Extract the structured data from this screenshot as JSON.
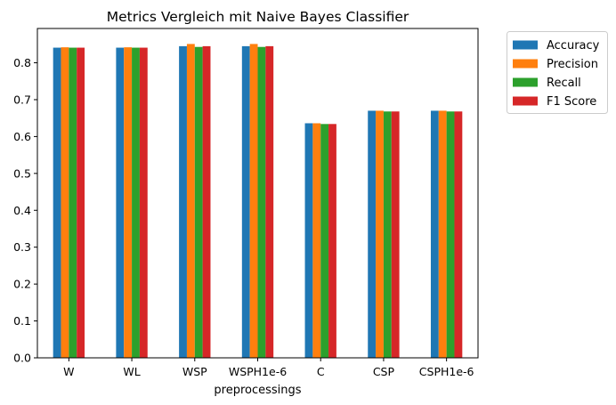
{
  "chart_data": {
    "type": "bar",
    "title": "Metrics Vergleich mit Naive Bayes Classifier",
    "xlabel": "preprocessings",
    "ylabel": "",
    "categories": [
      "W",
      "WL",
      "WSP",
      "WSPH1e-6",
      "C",
      "CSP",
      "CSPH1e-6"
    ],
    "series": [
      {
        "name": "Accuracy",
        "color": "#1f77b4",
        "values": [
          0.841,
          0.841,
          0.845,
          0.845,
          0.636,
          0.67,
          0.67
        ]
      },
      {
        "name": "Precision",
        "color": "#ff7f0e",
        "values": [
          0.842,
          0.842,
          0.851,
          0.851,
          0.636,
          0.67,
          0.67
        ]
      },
      {
        "name": "Recall",
        "color": "#2ca02c",
        "values": [
          0.841,
          0.841,
          0.843,
          0.843,
          0.634,
          0.668,
          0.668
        ]
      },
      {
        "name": "F1 Score",
        "color": "#d62728",
        "values": [
          0.841,
          0.841,
          0.845,
          0.845,
          0.634,
          0.668,
          0.668
        ]
      }
    ],
    "yticks": [
      "0.0",
      "0.1",
      "0.2",
      "0.3",
      "0.4",
      "0.5",
      "0.6",
      "0.7",
      "0.8"
    ],
    "ylim": [
      0,
      0.893
    ],
    "grid": false,
    "legend_position": "outside-top-right"
  }
}
